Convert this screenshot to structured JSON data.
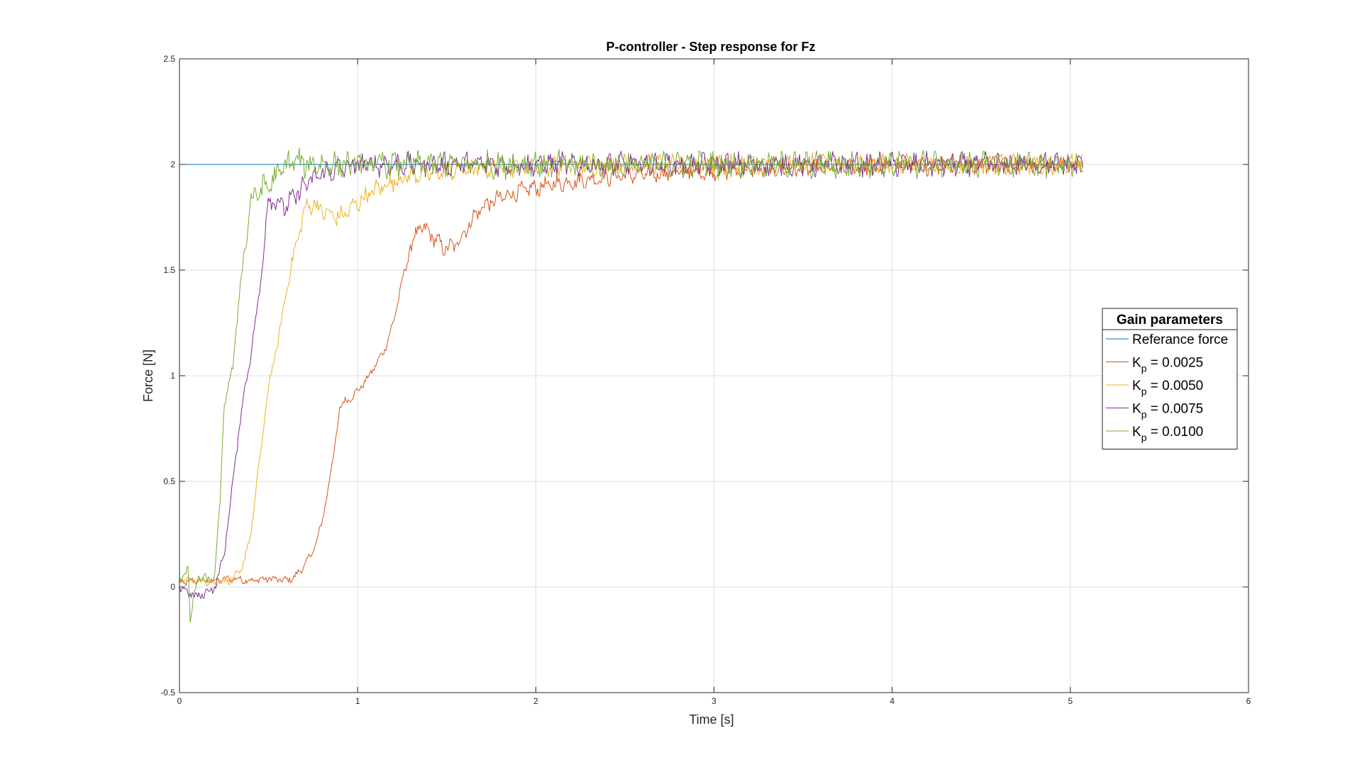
{
  "chart_data": {
    "type": "line",
    "title": "P-controller - Step response for Fz",
    "xlabel": "Time [s]",
    "ylabel": "Force [N]",
    "xlim": [
      0,
      6
    ],
    "ylim": [
      -0.5,
      2.5
    ],
    "xticks": [
      0,
      1,
      2,
      3,
      4,
      5,
      6
    ],
    "yticks": [
      -0.5,
      0,
      0.5,
      1,
      1.5,
      2,
      2.5
    ],
    "xtick_labels": [
      "0",
      "1",
      "2",
      "3",
      "4",
      "5",
      "6"
    ],
    "ytick_labels": [
      "-0.5",
      "0",
      "0.5",
      "1",
      "1.5",
      "2",
      "2.5"
    ],
    "grid": true,
    "legend": {
      "title": "Gain parameters",
      "placement": "right"
    },
    "series": [
      {
        "name": "Referance force",
        "color": "#0072BD",
        "x": [
          0,
          5.07
        ],
        "y": [
          2.0,
          2.0
        ]
      },
      {
        "name": "K_p = 0.0025",
        "label_main": "K",
        "label_sub": "p",
        "label_rest": " = 0.0025",
        "color": "#D95319",
        "noise": 0.055,
        "x": [
          0,
          0.1,
          0.2,
          0.3,
          0.4,
          0.5,
          0.6,
          0.65,
          0.7,
          0.75,
          0.8,
          0.83,
          0.87,
          0.9,
          0.93,
          0.97,
          1.0,
          1.05,
          1.1,
          1.15,
          1.2,
          1.25,
          1.3,
          1.35,
          1.4,
          1.45,
          1.5,
          1.55,
          1.6,
          1.65,
          1.7,
          1.8,
          1.9,
          2.0,
          2.2,
          2.5,
          3.0,
          3.5,
          4.0,
          4.5,
          5.07
        ],
        "y": [
          0.02,
          0.03,
          0.03,
          0.04,
          0.03,
          0.04,
          0.03,
          0.05,
          0.1,
          0.17,
          0.3,
          0.45,
          0.65,
          0.85,
          0.88,
          0.9,
          0.93,
          0.98,
          1.05,
          1.12,
          1.25,
          1.45,
          1.62,
          1.7,
          1.68,
          1.63,
          1.6,
          1.62,
          1.68,
          1.75,
          1.8,
          1.84,
          1.87,
          1.89,
          1.92,
          1.95,
          1.97,
          1.98,
          1.99,
          2.0,
          2.0
        ]
      },
      {
        "name": "K_p = 0.0050",
        "label_main": "K",
        "label_sub": "p",
        "label_rest": " = 0.0050",
        "color": "#EDB120",
        "noise": 0.06,
        "x": [
          0,
          0.1,
          0.2,
          0.3,
          0.35,
          0.4,
          0.45,
          0.5,
          0.55,
          0.6,
          0.65,
          0.7,
          0.75,
          0.8,
          0.85,
          0.9,
          0.95,
          1.0,
          1.1,
          1.2,
          1.3,
          1.5,
          1.7,
          2.0,
          2.5,
          3.0,
          4.0,
          5.07
        ],
        "y": [
          0.03,
          0.03,
          0.02,
          0.04,
          0.08,
          0.25,
          0.6,
          0.95,
          1.15,
          1.4,
          1.6,
          1.78,
          1.82,
          1.78,
          1.76,
          1.75,
          1.78,
          1.82,
          1.88,
          1.92,
          1.95,
          1.97,
          1.98,
          1.99,
          2.0,
          2.0,
          2.0,
          2.0
        ]
      },
      {
        "name": "K_p = 0.0075",
        "label_main": "K",
        "label_sub": "p",
        "label_rest": " = 0.0075",
        "color": "#7E2F8E",
        "noise": 0.07,
        "x": [
          0,
          0.1,
          0.2,
          0.25,
          0.3,
          0.35,
          0.4,
          0.45,
          0.5,
          0.55,
          0.6,
          0.65,
          0.7,
          0.75,
          0.8,
          0.9,
          1.0,
          1.5,
          2.0,
          3.0,
          4.0,
          5.07
        ],
        "y": [
          0.0,
          -0.05,
          0.0,
          0.15,
          0.5,
          0.85,
          1.1,
          1.4,
          1.85,
          1.82,
          1.8,
          1.85,
          1.9,
          1.93,
          1.96,
          1.98,
          2.0,
          2.0,
          2.0,
          2.0,
          2.0,
          2.0
        ]
      },
      {
        "name": "K_p = 0.0100",
        "label_main": "K",
        "label_sub": "p",
        "label_rest": " = 0.0100",
        "color": "#77AC30",
        "noise": 0.08,
        "x": [
          0,
          0.05,
          0.06,
          0.1,
          0.15,
          0.2,
          0.23,
          0.25,
          0.3,
          0.35,
          0.4,
          0.45,
          0.5,
          0.55,
          0.6,
          0.65,
          0.7,
          1.0,
          2.0,
          3.0,
          4.0,
          5.07
        ],
        "y": [
          0.0,
          0.12,
          -0.18,
          0.05,
          0.03,
          0.05,
          0.45,
          0.85,
          1.05,
          1.5,
          1.82,
          1.88,
          1.9,
          1.95,
          2.0,
          2.02,
          2.0,
          2.0,
          2.0,
          2.0,
          2.0,
          2.0
        ]
      }
    ]
  }
}
